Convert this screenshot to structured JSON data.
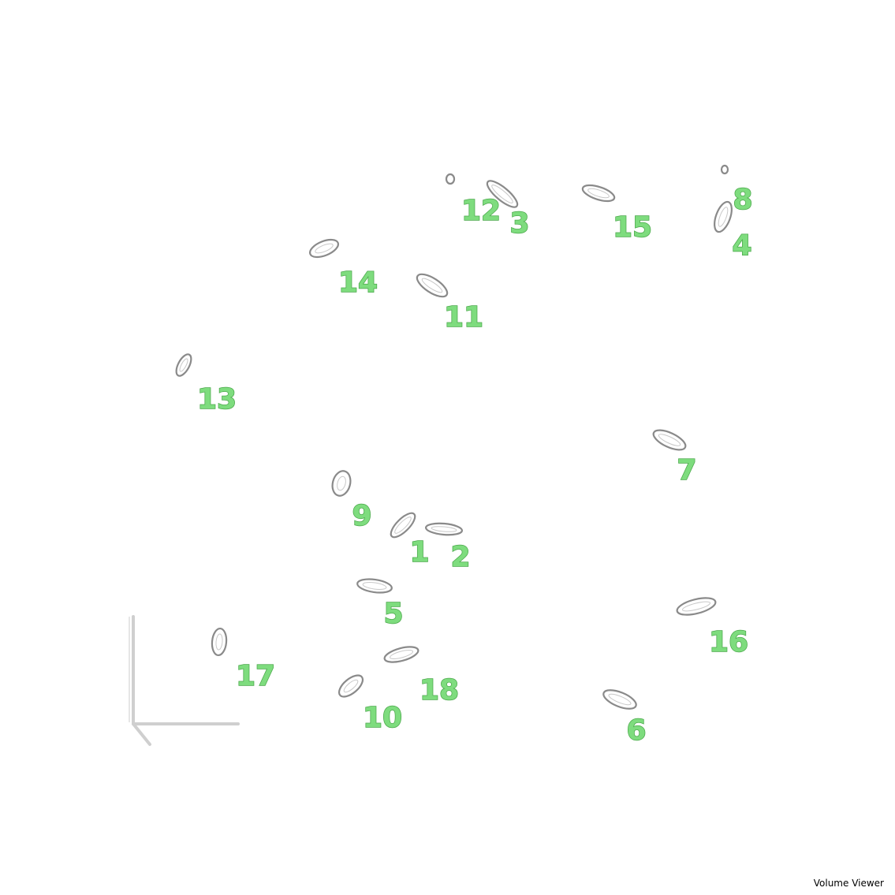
{
  "viewer": {
    "title": "Volume Viewer"
  },
  "objects": [
    {
      "label": "1"
    },
    {
      "label": "2"
    },
    {
      "label": "3"
    },
    {
      "label": "4"
    },
    {
      "label": "5"
    },
    {
      "label": "6"
    },
    {
      "label": "7"
    },
    {
      "label": "8"
    },
    {
      "label": "9"
    },
    {
      "label": "10"
    },
    {
      "label": "11"
    },
    {
      "label": "12"
    },
    {
      "label": "13"
    },
    {
      "label": "14"
    },
    {
      "label": "15"
    },
    {
      "label": "16"
    },
    {
      "label": "17"
    },
    {
      "label": "18"
    }
  ],
  "colors": {
    "label": "#7edc7e",
    "outline": "#8a8a8a",
    "axis": "#cfcfcf"
  }
}
